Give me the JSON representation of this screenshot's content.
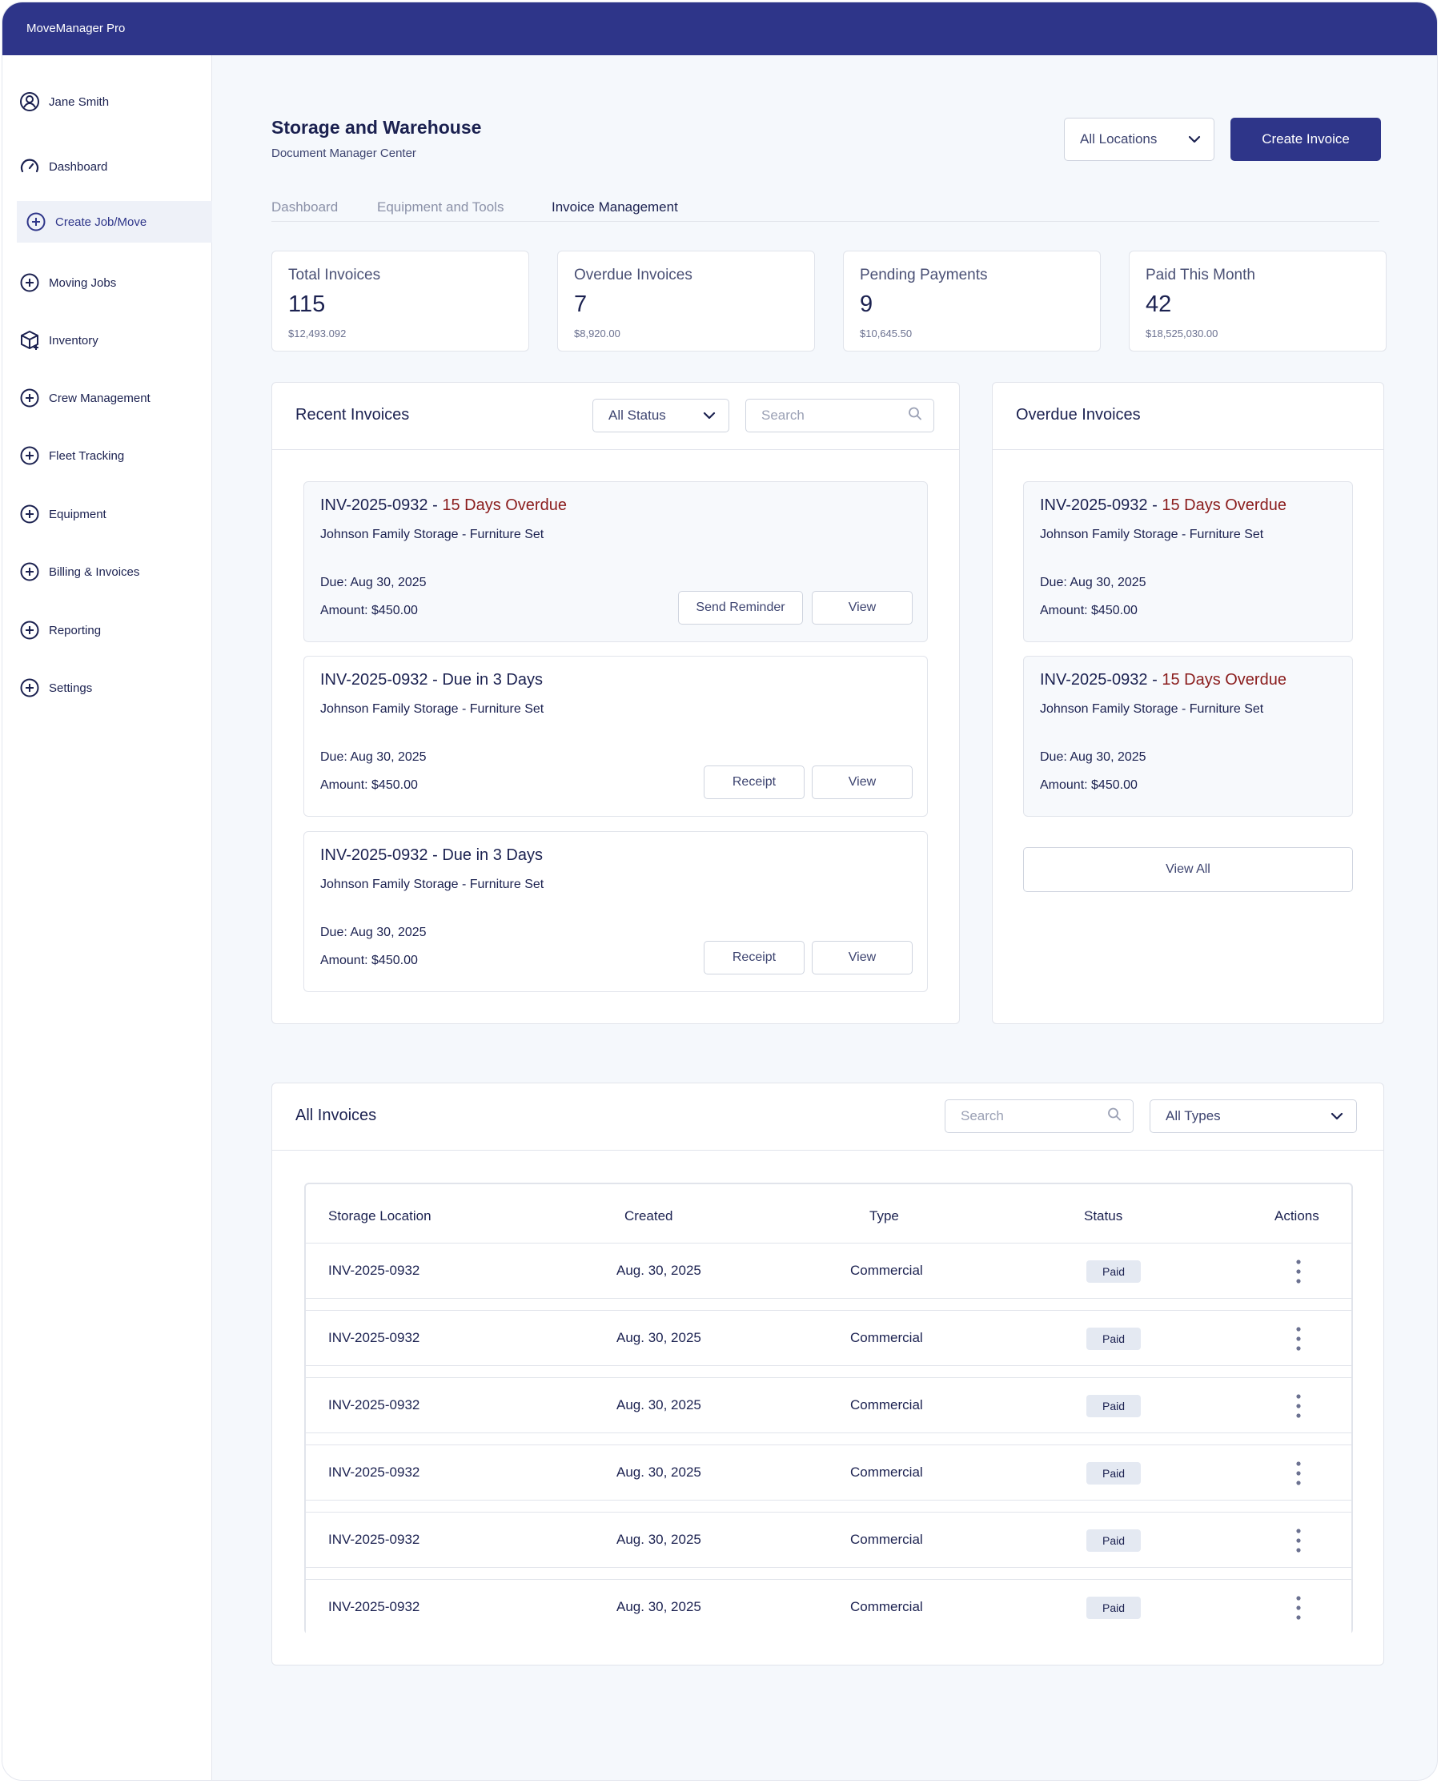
{
  "app": {
    "title": "MoveManager Pro"
  },
  "sidebar": {
    "user": "Jane Smith",
    "items": [
      {
        "label": "Dashboard",
        "icon": "gauge-icon"
      },
      {
        "label": "Create Job/Move",
        "icon": "plus-circle-icon",
        "active": true
      },
      {
        "label": "Moving Jobs",
        "icon": "plus-circle-icon"
      },
      {
        "label": "Inventory",
        "icon": "box-icon"
      },
      {
        "label": "Crew Management",
        "icon": "plus-circle-icon"
      },
      {
        "label": "Fleet Tracking",
        "icon": "plus-circle-icon"
      },
      {
        "label": "Equipment",
        "icon": "plus-circle-icon"
      },
      {
        "label": "Billing & Invoices",
        "icon": "plus-circle-icon"
      },
      {
        "label": "Reporting",
        "icon": "plus-circle-icon"
      },
      {
        "label": "Settings",
        "icon": "plus-circle-icon"
      }
    ]
  },
  "header": {
    "title": "Storage and Warehouse",
    "subtitle": "Document Manager Center",
    "location_select": "All Locations",
    "create_button": "Create Invoice"
  },
  "tabs": [
    {
      "label": "Dashboard"
    },
    {
      "label": "Equipment and Tools"
    },
    {
      "label": "Invoice Management",
      "active": true
    }
  ],
  "stats": [
    {
      "label": "Total Invoices",
      "value": "115",
      "sub": "$12,493.092"
    },
    {
      "label": "Overdue Invoices",
      "value": "7",
      "sub": "$8,920.00"
    },
    {
      "label": "Pending Payments",
      "value": "9",
      "sub": "$10,645.50"
    },
    {
      "label": "Paid This Month",
      "value": "42",
      "sub": "$18,525,030.00"
    }
  ],
  "recent": {
    "title": "Recent Invoices",
    "status_select": "All Status",
    "search_placeholder": "Search",
    "cards": [
      {
        "id": "INV-2025-0932",
        "sep": " - ",
        "status": "15 Days Overdue",
        "desc": "Johnson Family Storage - Furniture Set",
        "due": "Due: Aug 30, 2025",
        "amount": "Amount: $450.00",
        "action": "Send Reminder",
        "view": "View"
      },
      {
        "id": "INV-2025-0932",
        "sep": " - ",
        "status": "Due in 3 Days",
        "desc": "Johnson Family Storage - Furniture Set",
        "due": "Due: Aug 30, 2025",
        "amount": "Amount: $450.00",
        "action": "Receipt",
        "view": "View"
      },
      {
        "id": "INV-2025-0932",
        "sep": " - ",
        "status": "Due in 3 Days",
        "desc": "Johnson Family Storage - Furniture Set",
        "due": "Due: Aug 30, 2025",
        "amount": "Amount: $450.00",
        "action": "Receipt",
        "view": "View"
      }
    ]
  },
  "overdue": {
    "title": "Overdue Invoices",
    "cards": [
      {
        "id": "INV-2025-0932",
        "sep": " - ",
        "status": "15 Days Overdue",
        "desc": "Johnson Family Storage - Furniture Set",
        "due": "Due: Aug 30, 2025",
        "amount": "Amount: $450.00"
      },
      {
        "id": "INV-2025-0932",
        "sep": " - ",
        "status": "15 Days Overdue",
        "desc": "Johnson Family Storage - Furniture Set",
        "due": "Due: Aug 30, 2025",
        "amount": "Amount: $450.00"
      }
    ],
    "view_all": "View All"
  },
  "all_invoices": {
    "title": "All Invoices",
    "search_placeholder": "Search",
    "type_select": "All Types",
    "columns": [
      "Storage Location",
      "Created",
      "Type",
      "Status",
      "Actions"
    ],
    "rows": [
      {
        "id": "INV-2025-0932",
        "created": "Aug. 30, 2025",
        "type": "Commercial",
        "status": "Paid"
      },
      {
        "id": "INV-2025-0932",
        "created": "Aug. 30, 2025",
        "type": "Commercial",
        "status": "Paid"
      },
      {
        "id": "INV-2025-0932",
        "created": "Aug. 30, 2025",
        "type": "Commercial",
        "status": "Paid"
      },
      {
        "id": "INV-2025-0932",
        "created": "Aug. 30, 2025",
        "type": "Commercial",
        "status": "Paid"
      },
      {
        "id": "INV-2025-0932",
        "created": "Aug. 30, 2025",
        "type": "Commercial",
        "status": "Paid"
      },
      {
        "id": "INV-2025-0932",
        "created": "Aug. 30, 2025",
        "type": "Commercial",
        "status": "Paid"
      }
    ]
  },
  "colors": {
    "brand": "#2e3589",
    "overdue": "#8a1c1c",
    "background": "#f5f8fc",
    "badge": "#e4e9f2"
  }
}
